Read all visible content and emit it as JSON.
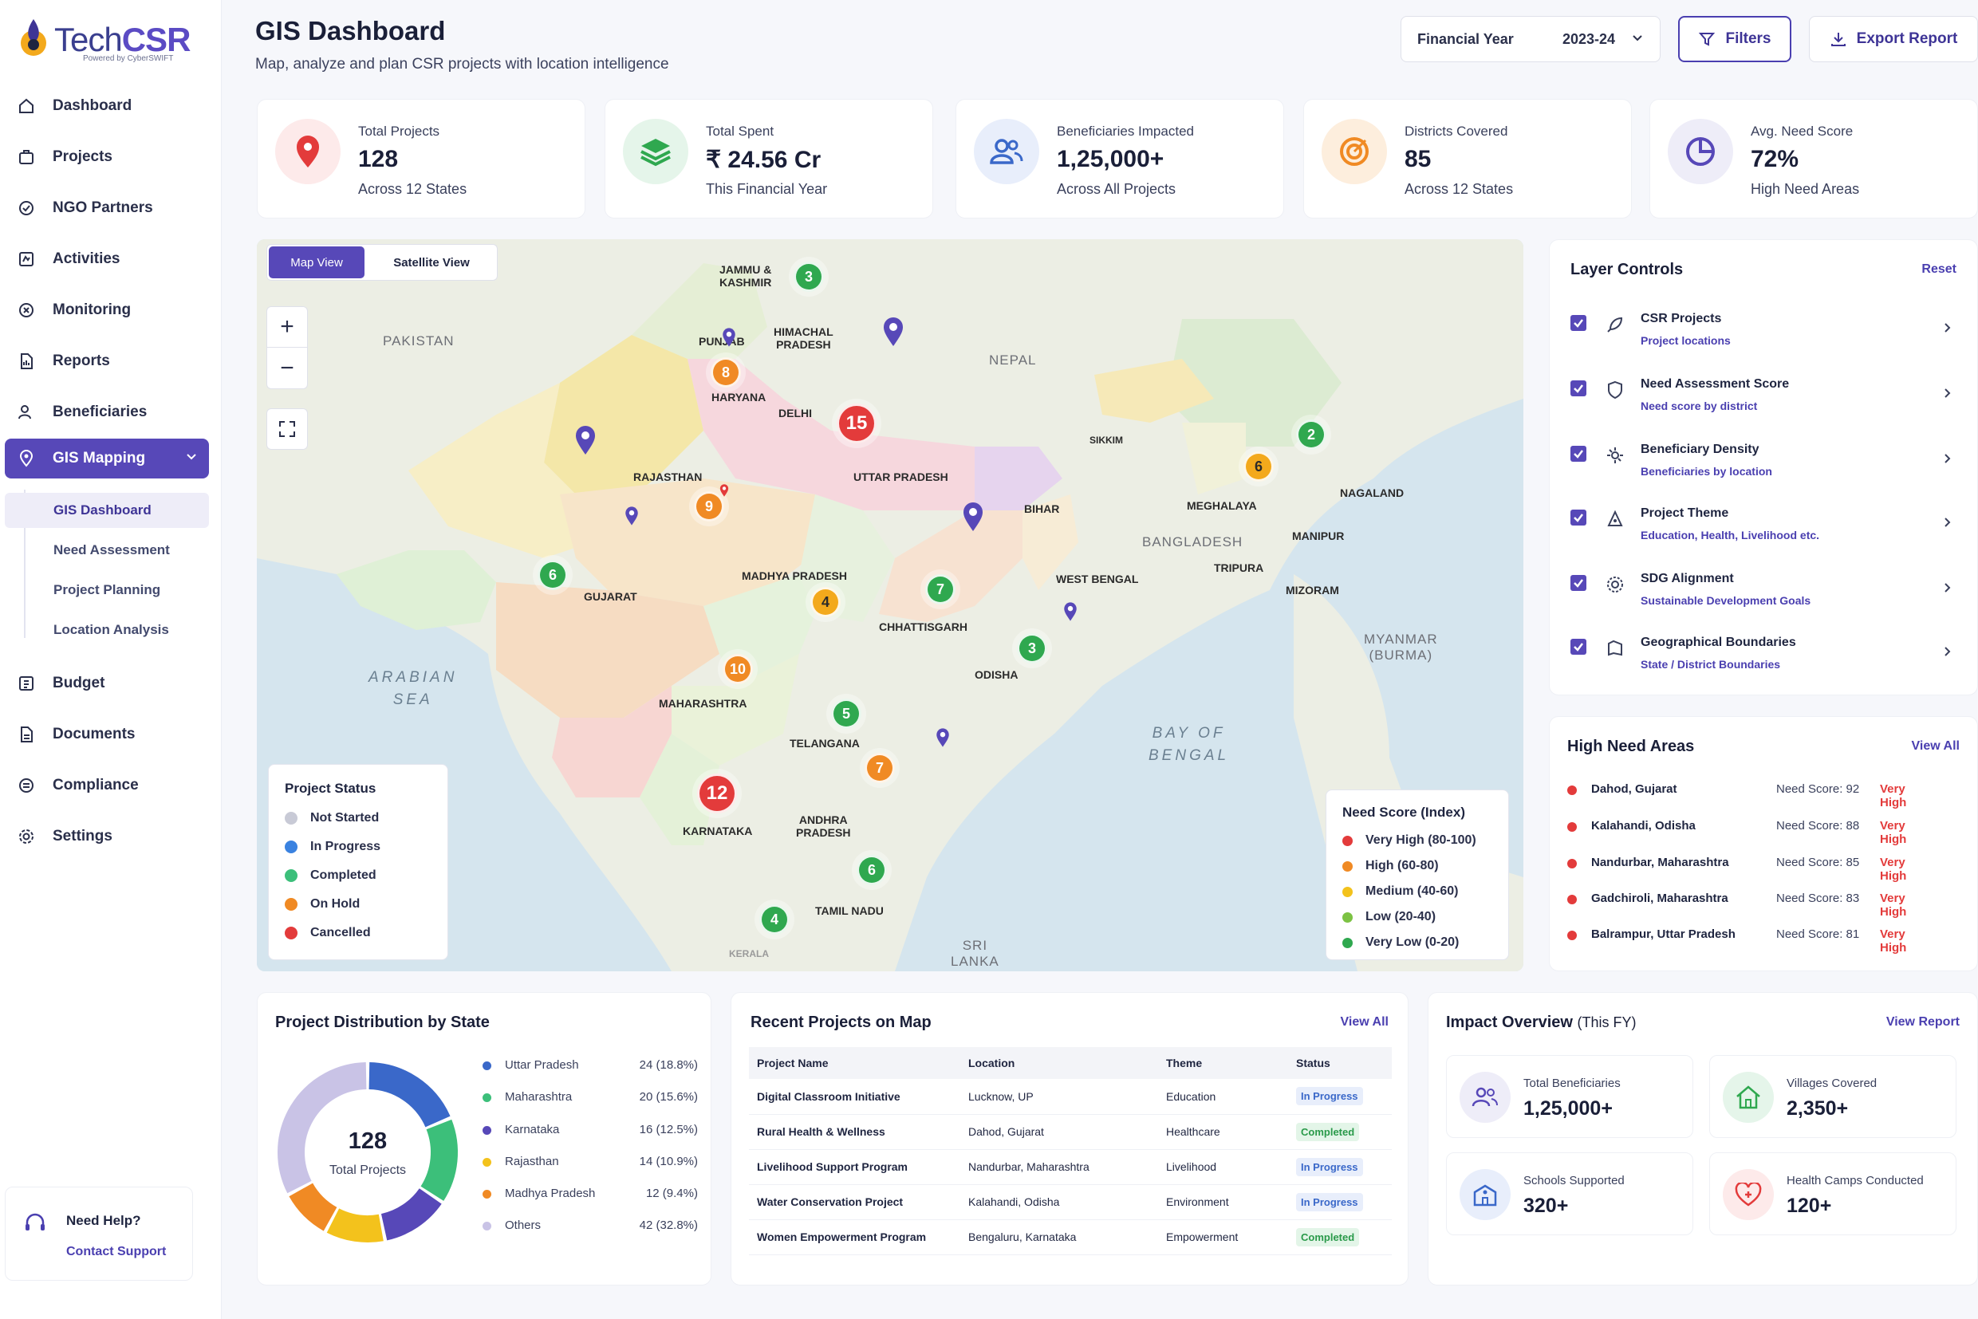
{
  "brand": {
    "name_a": "Tech",
    "name_b": "CSR",
    "powered": "Powered by CyberSWIFT"
  },
  "sidebar": {
    "items": [
      {
        "label": "Dashboard"
      },
      {
        "label": "Projects"
      },
      {
        "label": "NGO Partners"
      },
      {
        "label": "Activities"
      },
      {
        "label": "Monitoring"
      },
      {
        "label": "Reports"
      },
      {
        "label": "Beneficiaries"
      },
      {
        "label": "GIS Mapping"
      },
      {
        "label": "Budget"
      },
      {
        "label": "Documents"
      },
      {
        "label": "Compliance"
      },
      {
        "label": "Settings"
      }
    ],
    "sub_items": [
      {
        "label": "GIS Dashboard"
      },
      {
        "label": "Need Assessment"
      },
      {
        "label": "Project Planning"
      },
      {
        "label": "Location Analysis"
      }
    ],
    "help": {
      "title": "Need Help?",
      "link": "Contact Support"
    }
  },
  "header": {
    "title": "GIS Dashboard",
    "subtitle": "Map, analyze and plan CSR projects with location intelligence",
    "fy_label": "Financial Year",
    "fy_value": "2023-24",
    "filters": "Filters",
    "export": "Export Report"
  },
  "kpis": [
    {
      "label": "Total Projects",
      "value": "128",
      "sub": "Across 12 States",
      "icon": "map-pin-icon",
      "color": "#e33b3b"
    },
    {
      "label": "Total Spent",
      "value": "₹ 24.56 Cr",
      "sub": "This Financial Year",
      "icon": "layers-icon",
      "color": "#2fa84f"
    },
    {
      "label": "Beneficiaries Impacted",
      "value": "1,25,000+",
      "sub": "Across All Projects",
      "icon": "users-icon",
      "color": "#3a68c9"
    },
    {
      "label": "Districts Covered",
      "value": "85",
      "sub": "Across 12 States",
      "icon": "target-icon",
      "color": "#f08a24"
    },
    {
      "label": "Avg. Need Score",
      "value": "72%",
      "sub": "High Need Areas",
      "icon": "pie-icon",
      "color": "#5748b8"
    }
  ],
  "map": {
    "view_map": "Map View",
    "view_sat": "Satellite View",
    "zoom_in": "+",
    "zoom_out": "−",
    "labels": {
      "jk": "JAMMU &\nKASHMIR",
      "hp": "HIMACHAL\nPRADESH",
      "pb": "PUNJAB",
      "hr": "HARYANA",
      "dl": "DELHI",
      "up": "UTTAR PRADESH",
      "rj": "RAJASTHAN",
      "br": "BIHAR",
      "gj": "GUJARAT",
      "mp": "MADHYA PRADESH",
      "wb": "WEST BENGAL",
      "cg": "CHHATTISGARH",
      "od": "ODISHA",
      "mh": "MAHARASHTRA",
      "tg": "TELANGANA",
      "ka": "KARNATAKA",
      "ap": "ANDHRA\nPRADESH",
      "tn": "TAMIL NADU",
      "kl": "KERALA",
      "sk": "SIKKIM",
      "ml": "MEGHALAYA",
      "ng": "NAGALAND",
      "mn": "MANIPUR",
      "tr": "TRIPURA",
      "mz": "MIZORAM"
    },
    "countries": {
      "pk": "PAKISTAN",
      "np": "NEPAL",
      "bd": "BANGLADESH",
      "mm": "MYANMAR\n(BURMA)",
      "lk": "SRI\nLANKA"
    },
    "seas": {
      "as": "ARABIAN\nSEA",
      "bb": "BAY OF\nBENGAL"
    },
    "clusters": [
      "3",
      "8",
      "15",
      "9",
      "6",
      "4",
      "7",
      "3",
      "10",
      "5",
      "7",
      "12",
      "6",
      "4",
      "2",
      "6"
    ],
    "status_legend": {
      "title": "Project Status",
      "items": [
        {
          "label": "Not Started",
          "color": "#c8cad6"
        },
        {
          "label": "In Progress",
          "color": "#3a82e0"
        },
        {
          "label": "Completed",
          "color": "#3cbf7a"
        },
        {
          "label": "On Hold",
          "color": "#f08a24"
        },
        {
          "label": "Cancelled",
          "color": "#e33b3b"
        }
      ]
    },
    "need_legend": {
      "title": "Need Score (Index)",
      "items": [
        {
          "label": "Very High (80-100)",
          "color": "#e33b3b"
        },
        {
          "label": "High (60-80)",
          "color": "#f08a24"
        },
        {
          "label": "Medium (40-60)",
          "color": "#f3c21c"
        },
        {
          "label": "Low (20-40)",
          "color": "#7cc243"
        },
        {
          "label": "Very Low (0-20)",
          "color": "#2fa84f"
        }
      ]
    }
  },
  "layers": {
    "title": "Layer Controls",
    "reset": "Reset",
    "items": [
      {
        "title": "CSR Projects",
        "sub": "Project locations"
      },
      {
        "title": "Need Assessment Score",
        "sub": "Need score by district"
      },
      {
        "title": "Beneficiary Density",
        "sub": "Beneficiaries by location"
      },
      {
        "title": "Project Theme",
        "sub": "Education, Health, Livelihood etc."
      },
      {
        "title": "SDG Alignment",
        "sub": "Sustainable Development Goals"
      },
      {
        "title": "Geographical Boundaries",
        "sub": "State / District Boundaries"
      }
    ]
  },
  "high_need": {
    "title": "High Need Areas",
    "view_all": "View All",
    "rows": [
      {
        "name": "Dahod, Gujarat",
        "score": "Need Score: 92",
        "level": "Very High"
      },
      {
        "name": "Kalahandi, Odisha",
        "score": "Need Score: 88",
        "level": "Very High"
      },
      {
        "name": "Nandurbar, Maharashtra",
        "score": "Need Score: 85",
        "level": "Very High"
      },
      {
        "name": "Gadchiroli, Maharashtra",
        "score": "Need Score: 83",
        "level": "Very High"
      },
      {
        "name": "Balrampur, Uttar Pradesh",
        "score": "Need Score: 81",
        "level": "Very High"
      }
    ]
  },
  "distribution": {
    "title": "Project Distribution by State",
    "center_value": "128",
    "center_label": "Total Projects",
    "rows": [
      {
        "name": "Uttar Pradesh",
        "value": "24 (18.8%)",
        "color": "#3a68c9",
        "n": 24
      },
      {
        "name": "Maharashtra",
        "value": "20 (15.6%)",
        "color": "#3cbf7a",
        "n": 20
      },
      {
        "name": "Karnataka",
        "value": "16 (12.5%)",
        "color": "#5748b8",
        "n": 16
      },
      {
        "name": "Rajasthan",
        "value": "14 (10.9%)",
        "color": "#f3c21c",
        "n": 14
      },
      {
        "name": "Madhya Pradesh",
        "value": "12 (9.4%)",
        "color": "#f08a24",
        "n": 12
      },
      {
        "name": "Others",
        "value": "42 (32.8%)",
        "color": "#c9c3e6",
        "n": 42
      }
    ]
  },
  "recent": {
    "title": "Recent Projects on Map",
    "view_all": "View All",
    "headers": [
      "Project Name",
      "Location",
      "Theme",
      "Status"
    ],
    "rows": [
      [
        "Digital Classroom Initiative",
        "Lucknow, UP",
        "Education",
        "In Progress"
      ],
      [
        "Rural Health & Wellness",
        "Dahod, Gujarat",
        "Healthcare",
        "Completed"
      ],
      [
        "Livelihood Support Program",
        "Nandurbar, Maharashtra",
        "Livelihood",
        "In Progress"
      ],
      [
        "Water Conservation Project",
        "Kalahandi, Odisha",
        "Environment",
        "In Progress"
      ],
      [
        "Women Empowerment Program",
        "Bengaluru, Karnataka",
        "Empowerment",
        "Completed"
      ]
    ]
  },
  "impact": {
    "title": "Impact Overview",
    "title_suffix": "(This FY)",
    "link": "View Report",
    "cards": [
      {
        "label": "Total Beneficiaries",
        "value": "1,25,000+"
      },
      {
        "label": "Villages Covered",
        "value": "2,350+"
      },
      {
        "label": "Schools Supported",
        "value": "320+"
      },
      {
        "label": "Health Camps Conducted",
        "value": "120+"
      }
    ]
  }
}
